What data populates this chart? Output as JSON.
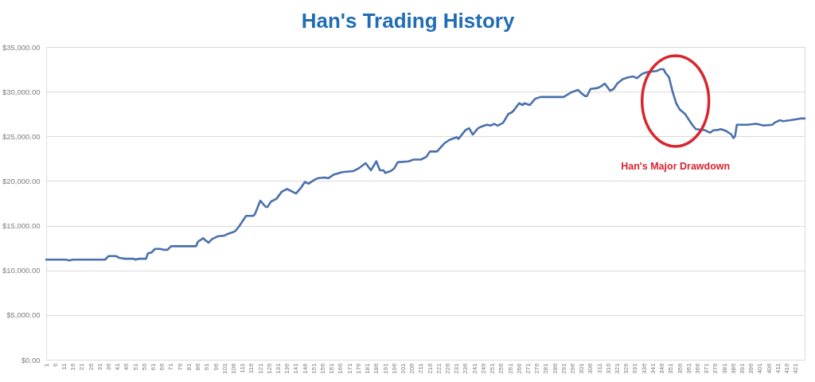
{
  "chart_data": {
    "type": "line",
    "title": "Han's Trading History",
    "x": [
      1,
      12,
      14,
      16,
      34,
      36,
      40,
      42,
      45,
      50,
      51,
      53,
      57,
      58,
      60,
      62,
      65,
      67,
      69,
      71,
      85,
      86,
      89,
      90,
      92,
      94,
      97,
      101,
      103,
      106,
      107,
      109,
      113,
      117,
      118,
      120,
      121,
      124,
      125,
      127,
      130,
      133,
      136,
      141,
      144,
      146,
      148,
      151,
      153,
      157,
      159,
      162,
      167,
      173,
      176,
      180,
      183,
      186,
      188,
      190,
      191,
      194,
      196,
      198,
      204,
      207,
      211,
      214,
      216,
      220,
      224,
      227,
      231,
      232,
      236,
      238,
      240,
      243,
      245,
      248,
      250,
      252,
      254,
      257,
      260,
      262,
      263,
      266,
      268,
      269,
      272,
      275,
      278,
      291,
      295,
      299,
      301,
      303,
      304,
      306,
      310,
      312,
      314,
      317,
      319,
      321,
      324,
      327,
      330,
      332,
      335,
      338,
      343,
      345,
      347,
      348,
      350,
      352,
      354,
      356,
      359,
      363,
      365,
      370,
      373,
      375,
      377,
      379,
      382,
      385,
      386,
      387,
      388,
      394,
      399,
      403,
      408,
      409,
      412,
      414,
      418,
      421,
      424,
      426
    ],
    "series": [
      {
        "color": "#4a70ad",
        "values": [
          11200,
          11200,
          11100,
          11200,
          11200,
          11600,
          11600,
          11400,
          11300,
          11300,
          11200,
          11300,
          11300,
          11900,
          12000,
          12400,
          12400,
          12300,
          12300,
          12700,
          12700,
          13200,
          13600,
          13400,
          13100,
          13500,
          13800,
          13900,
          14100,
          14300,
          14400,
          14900,
          16100,
          16100,
          16300,
          17300,
          17800,
          17100,
          17100,
          17700,
          18000,
          18800,
          19100,
          18600,
          19300,
          19900,
          19700,
          20100,
          20300,
          20400,
          20300,
          20700,
          21000,
          21100,
          21400,
          22000,
          21200,
          22200,
          21200,
          21200,
          20900,
          21100,
          21400,
          22100,
          22200,
          22400,
          22400,
          22700,
          23300,
          23300,
          24200,
          24600,
          24900,
          24700,
          25700,
          25900,
          25200,
          25900,
          26100,
          26300,
          26200,
          26400,
          26200,
          26500,
          27500,
          27700,
          27900,
          28700,
          28500,
          28700,
          28500,
          29200,
          29400,
          29400,
          29900,
          30200,
          29800,
          29500,
          29500,
          30300,
          30400,
          30600,
          30900,
          30100,
          30300,
          30900,
          31400,
          31600,
          31700,
          31500,
          32000,
          32200,
          32300,
          32500,
          32500,
          32100,
          31600,
          30000,
          28700,
          28000,
          27500,
          26300,
          25800,
          25700,
          25400,
          25700,
          25700,
          25800,
          25600,
          25200,
          24800,
          25000,
          26300,
          26300,
          26400,
          26200,
          26300,
          26500,
          26800,
          26700,
          26800,
          26900,
          27000,
          27000
        ]
      }
    ],
    "xlim": [
      1,
      426
    ],
    "xticks": [
      1,
      6,
      11,
      16,
      21,
      26,
      31,
      36,
      41,
      46,
      51,
      56,
      61,
      66,
      71,
      76,
      81,
      86,
      91,
      96,
      101,
      106,
      111,
      116,
      121,
      126,
      131,
      136,
      141,
      146,
      151,
      156,
      161,
      166,
      171,
      176,
      181,
      186,
      191,
      196,
      201,
      206,
      211,
      216,
      221,
      226,
      231,
      236,
      241,
      246,
      251,
      256,
      261,
      266,
      271,
      276,
      281,
      286,
      291,
      296,
      301,
      306,
      311,
      316,
      321,
      326,
      331,
      336,
      341,
      346,
      351,
      356,
      361,
      366,
      371,
      376,
      381,
      386,
      391,
      396,
      401,
      406,
      411,
      416,
      421
    ],
    "ylim": [
      0,
      35000
    ],
    "yticks": [
      {
        "value": 0,
        "label": "$0.00"
      },
      {
        "value": 5000,
        "label": "$5,000.00"
      },
      {
        "value": 10000,
        "label": "$10,000.00"
      },
      {
        "value": 15000,
        "label": "$15,000.00"
      },
      {
        "value": 20000,
        "label": "$20,000.00"
      },
      {
        "value": 25000,
        "label": "$25,000.00"
      },
      {
        "value": 30000,
        "label": "$30,000.00"
      },
      {
        "value": 35000,
        "label": "$35,000.00"
      }
    ],
    "grid": "y",
    "annotations": [
      "Han's Major Drawdown"
    ]
  }
}
